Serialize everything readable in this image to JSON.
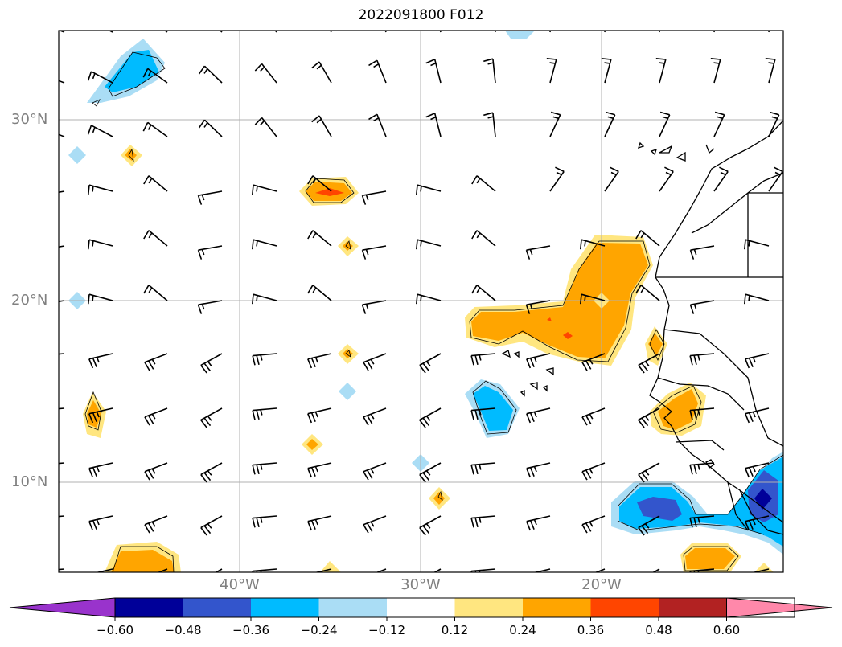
{
  "title": "2022091800 F012",
  "map": {
    "lat_range": [
      5,
      35
    ],
    "lon_range": [
      -50,
      -10
    ],
    "lat_ticks": [
      {
        "value": 30,
        "label": "30°N"
      },
      {
        "value": 20,
        "label": "20°N"
      },
      {
        "value": 10,
        "label": "10°N"
      }
    ],
    "lon_ticks": [
      {
        "value": -40,
        "label": "40°W"
      },
      {
        "value": -30,
        "label": "30°W"
      },
      {
        "value": -20,
        "label": "20°W"
      }
    ],
    "grid": true,
    "layers": [
      "filled-contours",
      "wind-barbs",
      "coastlines"
    ]
  },
  "colorbar": {
    "orientation": "horizontal",
    "extend": "both",
    "levels": [
      "−0.60",
      "−0.48",
      "−0.36",
      "−0.24",
      "−0.12",
      "0.12",
      "0.24",
      "0.36",
      "0.48",
      "0.60"
    ],
    "colors": [
      "#9933cc",
      "#000099",
      "#3355cc",
      "#00bbff",
      "#aaddf5",
      "#ffffff",
      "#ffe680",
      "#ffa500",
      "#ff4500",
      "#b22222",
      "#ff88aa"
    ]
  }
}
